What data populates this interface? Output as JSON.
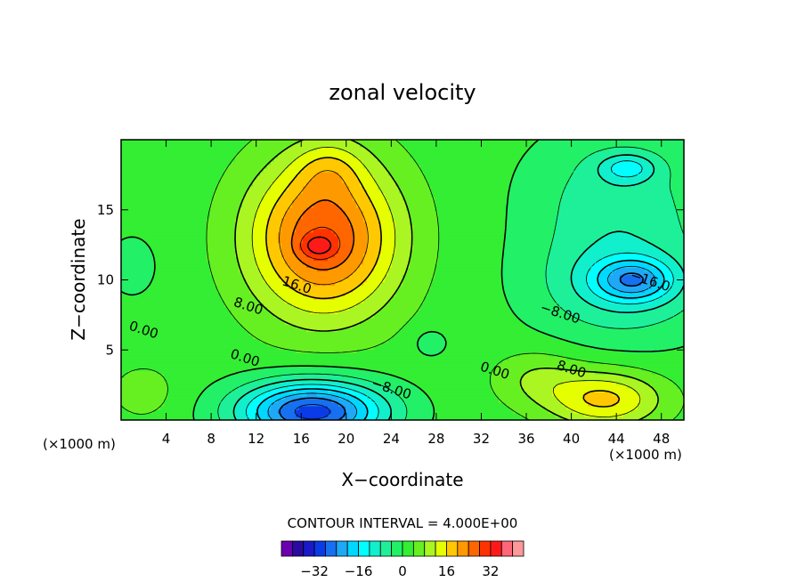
{
  "chart_data": {
    "type": "contour",
    "title": "zonal velocity",
    "xlabel": "X−coordinate",
    "ylabel": "Z−coordinate",
    "x_unit_label_left": "(×1000 m)",
    "x_unit_label_right": "(×1000 m)",
    "xlim": [
      0,
      50
    ],
    "ylim": [
      0,
      20
    ],
    "x_ticks": [
      "4",
      "8",
      "12",
      "16",
      "20",
      "24",
      "28",
      "32",
      "36",
      "40",
      "44",
      "48"
    ],
    "y_ticks": [
      "5",
      "10",
      "15"
    ],
    "contour_interval_label": "CONTOUR INTERVAL = 4.000E+00",
    "contour_labels": [
      {
        "text": "16.0",
        "x": 15.6,
        "z": 9.6
      },
      {
        "text": "8.00",
        "x": 11.3,
        "z": 8.1
      },
      {
        "text": "0.00",
        "x": 2.0,
        "z": 6.4
      },
      {
        "text": "0.00",
        "x": 11.0,
        "z": 4.4
      },
      {
        "text": "−8.00",
        "x": 24.0,
        "z": 2.2
      },
      {
        "text": "0.00",
        "x": 33.2,
        "z": 3.5
      },
      {
        "text": "−8.00",
        "x": 39.0,
        "z": 7.6
      },
      {
        "text": "−16.0",
        "x": 47.0,
        "z": 9.9
      },
      {
        "text": "8.00",
        "x": 40.0,
        "z": 3.6
      }
    ],
    "colorbar": {
      "tick_labels": [
        "−32",
        "−16",
        "0",
        "16",
        "32"
      ],
      "tick_values": [
        -32,
        -16,
        0,
        16,
        32
      ],
      "levels": [
        -40,
        -36,
        -32,
        -28,
        -24,
        -20,
        -16,
        -12,
        -8,
        -4,
        0,
        4,
        8,
        12,
        16,
        20,
        24,
        28,
        32,
        36,
        40
      ],
      "colors": [
        "#6a00b0",
        "#2a0aa0",
        "#1a1ac8",
        "#0a3be6",
        "#1670f0",
        "#1ea8f5",
        "#00d8ff",
        "#00ffff",
        "#11efcc",
        "#1df099",
        "#22f066",
        "#33ee33",
        "#66f022",
        "#aaf522",
        "#e6ff00",
        "#ffc800",
        "#ff9900",
        "#ff6600",
        "#ff3300",
        "#ff1a1a",
        "#ff6677",
        "#ff9999"
      ]
    }
  }
}
